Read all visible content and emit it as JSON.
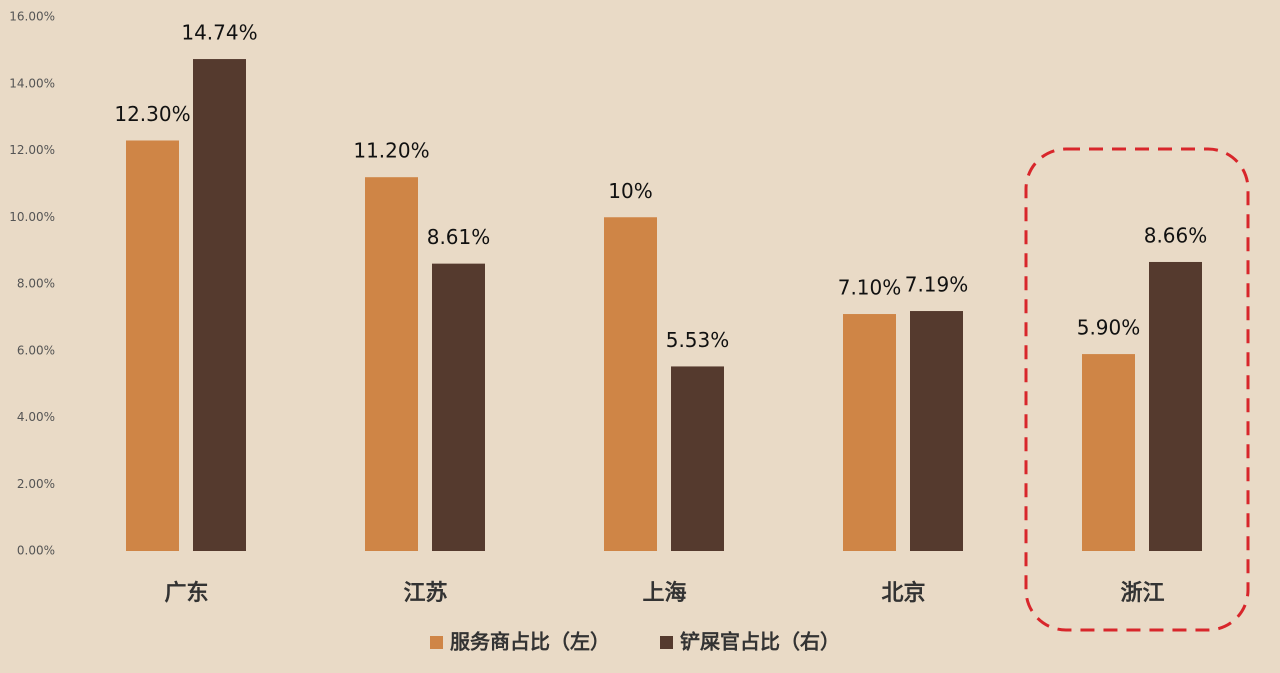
{
  "chart_data": {
    "type": "bar",
    "categories": [
      "广东",
      "江苏",
      "上海",
      "北京",
      "浙江"
    ],
    "series": [
      {
        "name": "服务商占比（左）",
        "color": "#cf8546",
        "values": [
          12.3,
          11.2,
          10,
          7.1,
          5.9
        ],
        "value_labels": [
          "12.30%",
          "11.20%",
          "10%",
          "7.10%",
          "5.90%"
        ]
      },
      {
        "name": "铲屎官占比（右）",
        "color": "#553a2e",
        "values": [
          14.74,
          8.61,
          5.53,
          7.19,
          8.66
        ],
        "value_labels": [
          "14.74%",
          "8.61%",
          "5.53%",
          "7.19%",
          "8.66%"
        ]
      }
    ],
    "ylim": [
      0,
      16
    ],
    "yticks": [
      {
        "value": 0,
        "label": "0.00%"
      },
      {
        "value": 2,
        "label": "2.00%"
      },
      {
        "value": 4,
        "label": "4.00%"
      },
      {
        "value": 6,
        "label": "6.00%"
      },
      {
        "value": 8,
        "label": "8.00%"
      },
      {
        "value": 10,
        "label": "10.00%"
      },
      {
        "value": 12,
        "label": "12.00%"
      },
      {
        "value": 14,
        "label": "14.00%"
      },
      {
        "value": 16,
        "label": "16.00%"
      }
    ],
    "grid": false
  }
}
